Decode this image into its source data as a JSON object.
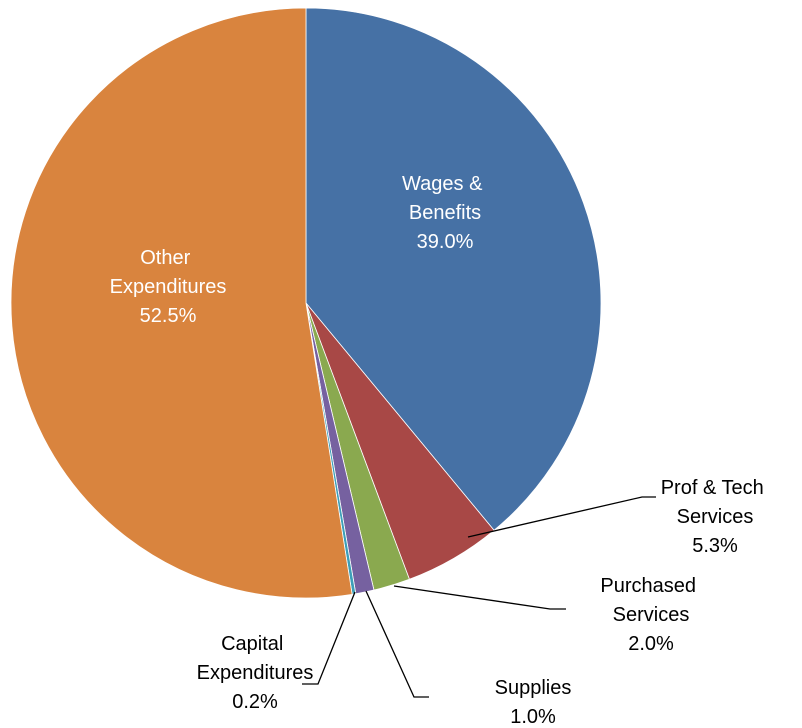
{
  "chart_data": {
    "type": "pie",
    "categories": [
      "Wages & Benefits",
      "Prof & Tech Services",
      "Purchased Services",
      "Supplies",
      "Capital Expenditures",
      "Other Expenditures"
    ],
    "values": [
      39.0,
      5.3,
      2.0,
      1.0,
      0.2,
      52.5
    ],
    "value_labels": [
      "39.0%",
      "5.3%",
      "2.0%",
      "1.0%",
      "0.2%",
      "52.5%"
    ],
    "colors": [
      "#4671a5",
      "#a84846",
      "#8aa94f",
      "#7661a0",
      "#3d9fb8",
      "#d9843e"
    ]
  }
}
